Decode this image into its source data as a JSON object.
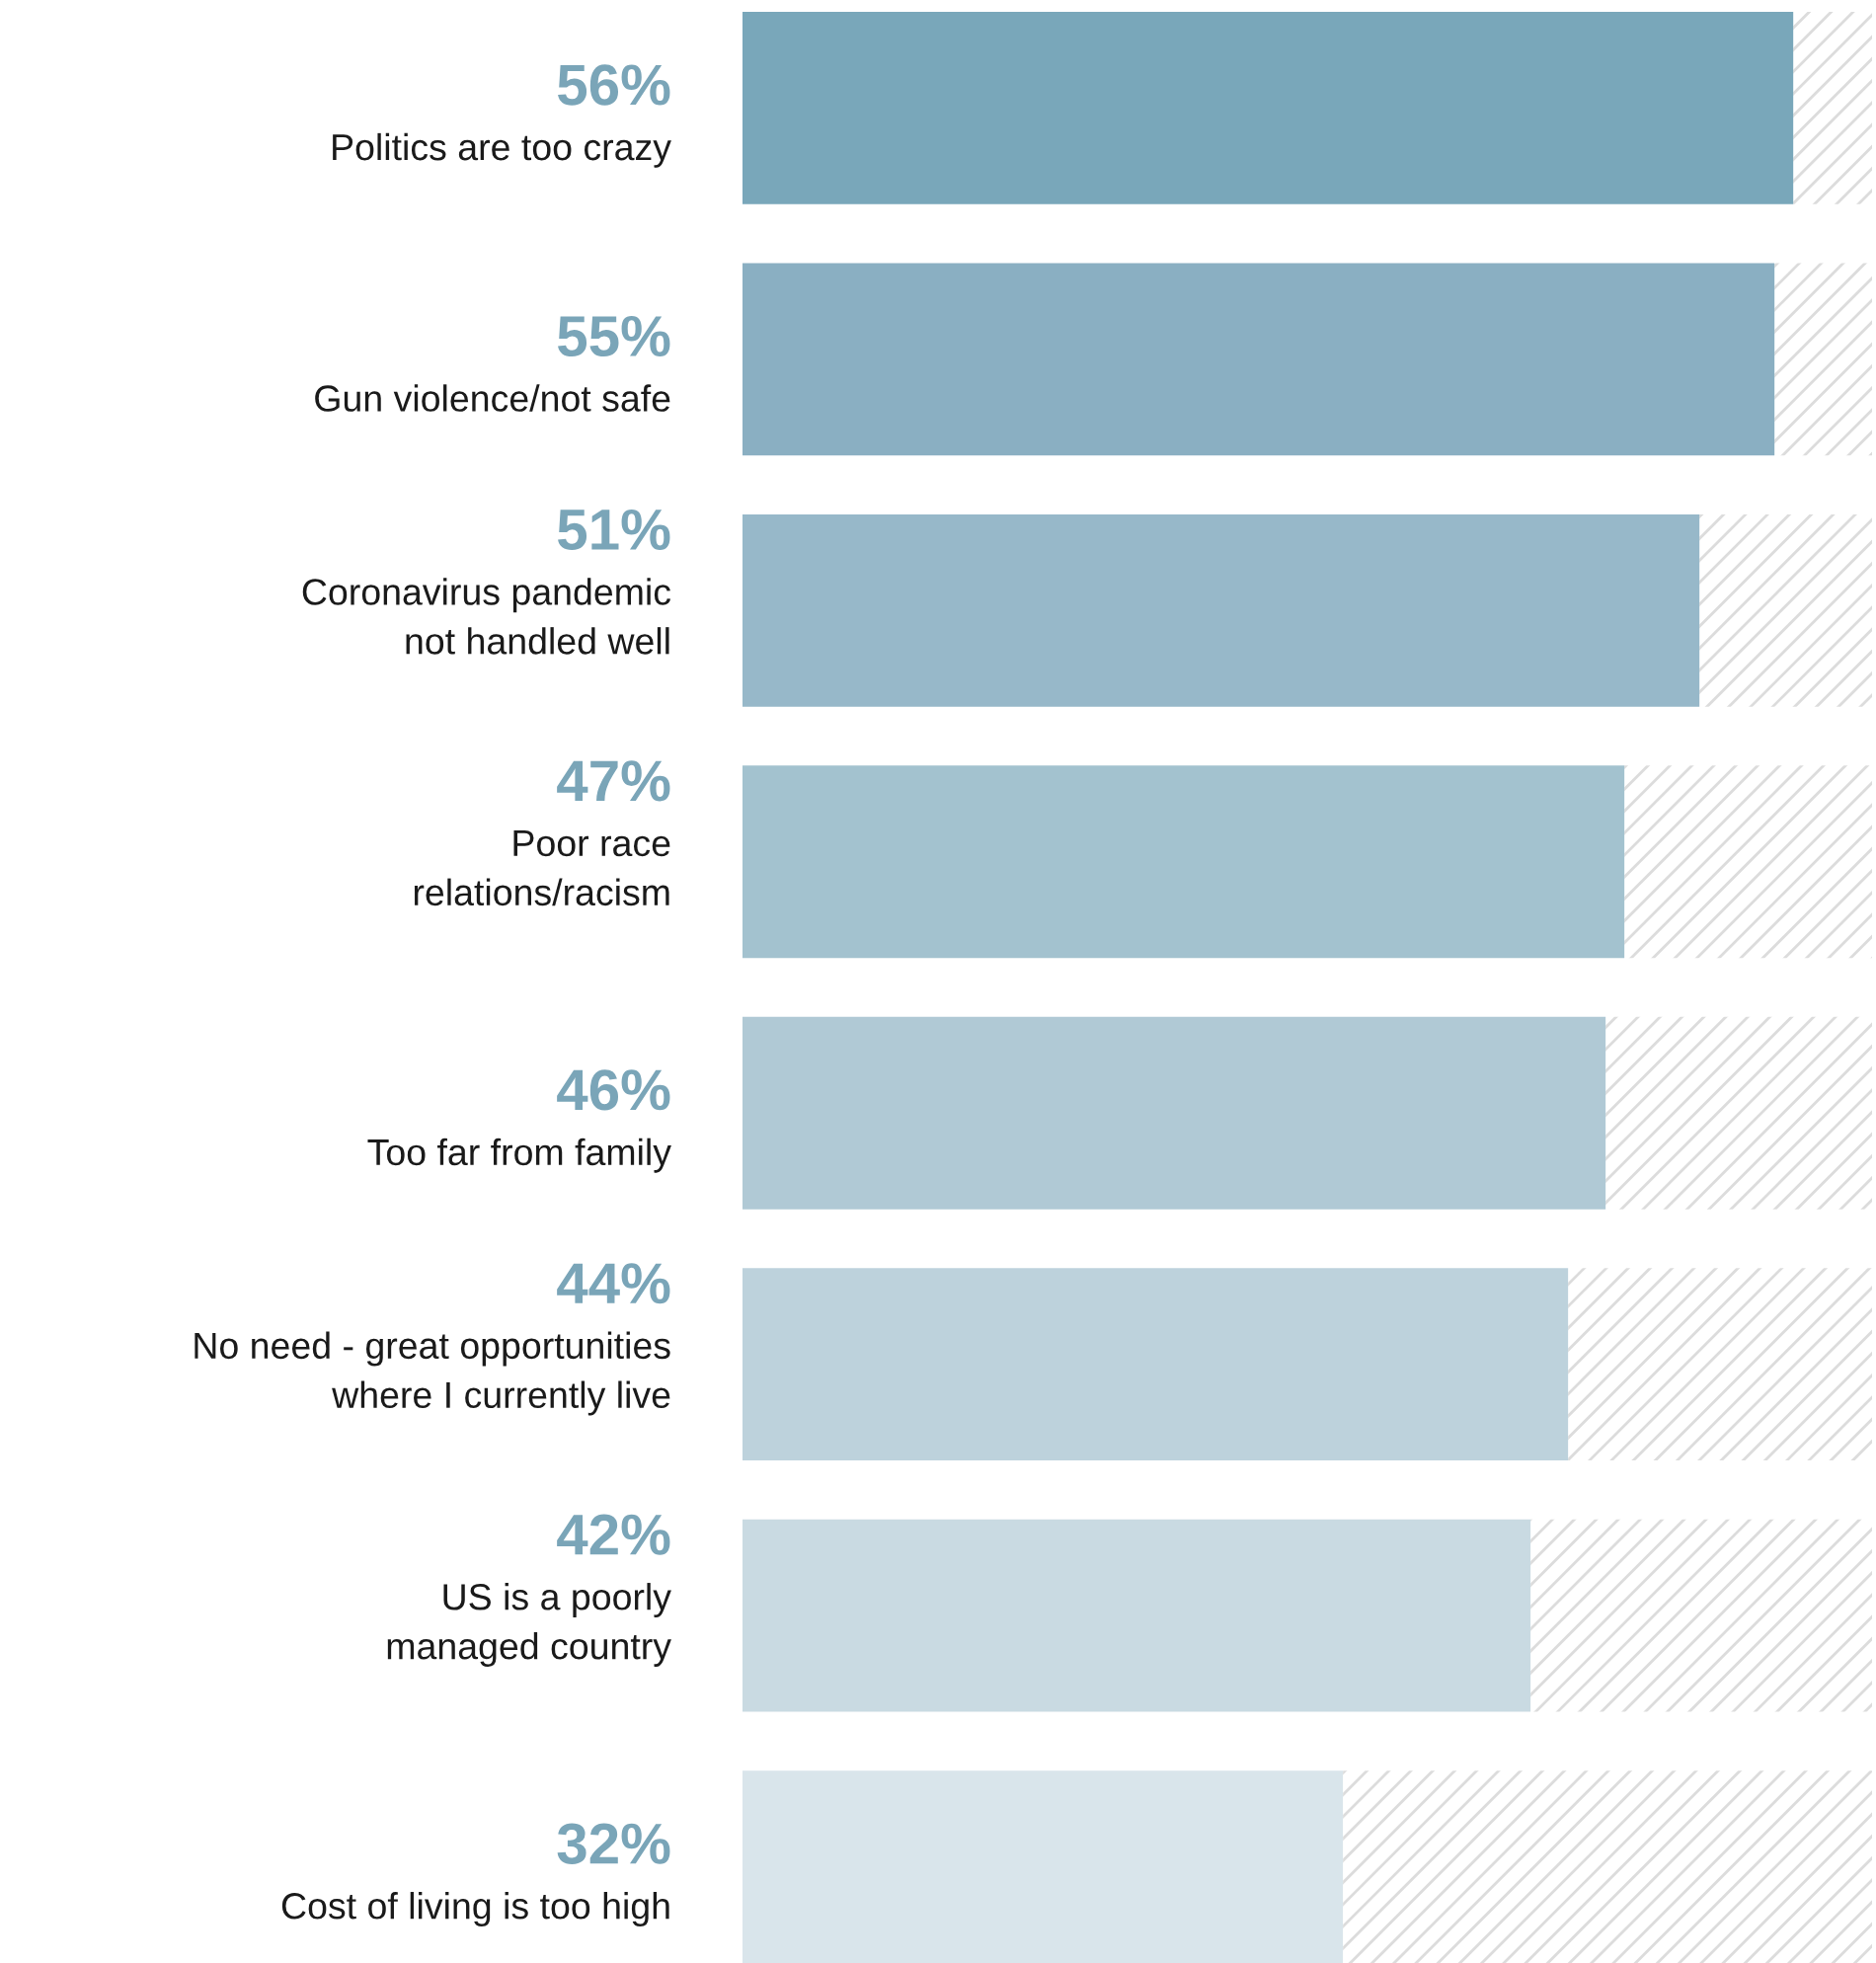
{
  "chart_data": {
    "type": "bar",
    "orientation": "horizontal",
    "categories": [
      "Politics are too crazy",
      "Gun violence/not safe",
      "Coronavirus pandemic\nnot handled well",
      "Poor race\nrelations/racism",
      "Too far from family",
      "No need - great opportunities\nwhere I currently live",
      "US is a poorly\nmanaged country",
      "Cost of living is too high"
    ],
    "values": [
      56,
      55,
      51,
      47,
      46,
      44,
      42,
      32
    ],
    "value_labels": [
      "56%",
      "55%",
      "51%",
      "47%",
      "46%",
      "44%",
      "42%",
      "32%"
    ],
    "colors": [
      "#79a7ba",
      "#8aafc2",
      "#97b8c9",
      "#a3c2cf",
      "#b0c9d5",
      "#bdd2dc",
      "#c9dae2",
      "#d9e5eb"
    ],
    "legend": false
  }
}
